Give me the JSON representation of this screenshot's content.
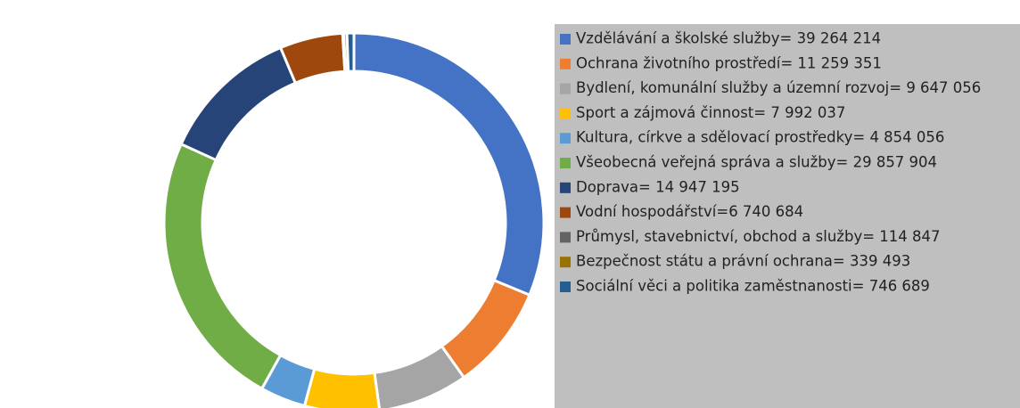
{
  "chart_data": {
    "type": "donut",
    "categories": [
      "Vzdělávání a školské služby= 39 264 214",
      "Ochrana životního prostředí= 11 259 351",
      "Bydlení, komunální služby a územní rozvoj= 9 647 056",
      "Sport a zájmová činnost= 7 992 037",
      "Kultura, církve a sdělovací prostředky= 4 854 056",
      "Všeobecná veřejná správa a služby= 29 857 904",
      "Doprava= 14 947 195",
      "Vodní hospodářství=6 740 684",
      "Průmysl, stavebnictví, obchod a služby= 114 847",
      "Bezpečnost státu a právní ochrana= 339 493",
      "Sociální věci a politika zaměstnanosti= 746 689"
    ],
    "values": [
      39264214,
      11259351,
      9647056,
      7992037,
      4854056,
      29857904,
      14947195,
      6740684,
      114847,
      339493,
      746689
    ],
    "colors": [
      "#4472c4",
      "#ed7d31",
      "#a5a5a5",
      "#ffc000",
      "#5b9bd5",
      "#70ad47",
      "#264478",
      "#9e480e",
      "#636363",
      "#997300",
      "#255e91"
    ]
  }
}
